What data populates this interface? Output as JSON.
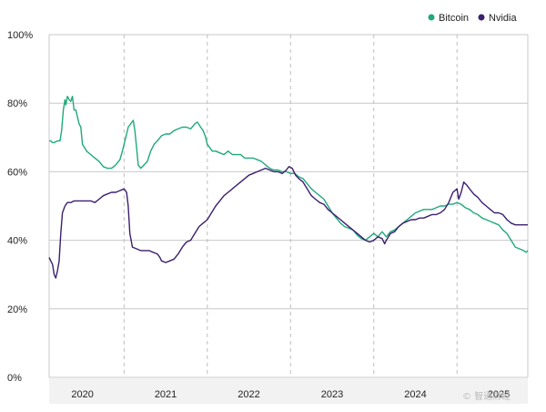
{
  "chart_data": {
    "type": "line",
    "title": "",
    "xlabel": "",
    "ylabel": "",
    "ylim": [
      0,
      100
    ],
    "xlim": [
      2019.6,
      2025.35
    ],
    "y_ticks": [
      {
        "value": 0,
        "label": "0%"
      },
      {
        "value": 20,
        "label": "20%"
      },
      {
        "value": 40,
        "label": "40%"
      },
      {
        "value": 60,
        "label": "60%"
      },
      {
        "value": 80,
        "label": "80%"
      },
      {
        "value": 100,
        "label": "100%"
      }
    ],
    "x_ticks": [
      {
        "value": 2020,
        "label": "2020"
      },
      {
        "value": 2021,
        "label": "2021"
      },
      {
        "value": 2022,
        "label": "2022"
      },
      {
        "value": 2023,
        "label": "2023"
      },
      {
        "value": 2024,
        "label": "2024"
      },
      {
        "value": 2025,
        "label": "2025"
      }
    ],
    "vertical_gridlines": [
      2020.5,
      2021.5,
      2022.5,
      2023.5,
      2024.5
    ],
    "grid": true,
    "legend_position": "top-right",
    "series": [
      {
        "name": "Bitcoin",
        "color": "#1fa97d",
        "points": [
          [
            2019.6,
            69
          ],
          [
            2019.62,
            69
          ],
          [
            2019.64,
            68.5
          ],
          [
            2019.66,
            68.5
          ],
          [
            2019.7,
            69
          ],
          [
            2019.73,
            69
          ],
          [
            2019.75,
            72
          ],
          [
            2019.77,
            78
          ],
          [
            2019.79,
            81
          ],
          [
            2019.8,
            79.5
          ],
          [
            2019.82,
            82
          ],
          [
            2019.84,
            81
          ],
          [
            2019.86,
            80.5
          ],
          [
            2019.88,
            82
          ],
          [
            2019.9,
            78
          ],
          [
            2019.92,
            78
          ],
          [
            2019.94,
            76
          ],
          [
            2019.96,
            74
          ],
          [
            2019.98,
            73
          ],
          [
            2020.0,
            68
          ],
          [
            2020.05,
            66
          ],
          [
            2020.1,
            65
          ],
          [
            2020.15,
            64
          ],
          [
            2020.2,
            63
          ],
          [
            2020.25,
            61.5
          ],
          [
            2020.3,
            61
          ],
          [
            2020.35,
            61
          ],
          [
            2020.4,
            62
          ],
          [
            2020.45,
            63.5
          ],
          [
            2020.48,
            66
          ],
          [
            2020.52,
            70
          ],
          [
            2020.55,
            73
          ],
          [
            2020.58,
            74
          ],
          [
            2020.61,
            75
          ],
          [
            2020.63,
            72
          ],
          [
            2020.65,
            67
          ],
          [
            2020.67,
            62
          ],
          [
            2020.7,
            61
          ],
          [
            2020.74,
            62
          ],
          [
            2020.78,
            63
          ],
          [
            2020.82,
            66
          ],
          [
            2020.86,
            68
          ],
          [
            2020.9,
            69
          ],
          [
            2020.95,
            70.5
          ],
          [
            2021.0,
            71
          ],
          [
            2021.05,
            71
          ],
          [
            2021.1,
            72
          ],
          [
            2021.15,
            72.5
          ],
          [
            2021.2,
            73
          ],
          [
            2021.25,
            73
          ],
          [
            2021.3,
            72.5
          ],
          [
            2021.35,
            74
          ],
          [
            2021.38,
            74.5
          ],
          [
            2021.42,
            73
          ],
          [
            2021.45,
            72
          ],
          [
            2021.48,
            70
          ],
          [
            2021.5,
            68
          ],
          [
            2021.53,
            67
          ],
          [
            2021.56,
            66
          ],
          [
            2021.6,
            66
          ],
          [
            2021.65,
            65.5
          ],
          [
            2021.7,
            65
          ],
          [
            2021.75,
            66
          ],
          [
            2021.8,
            65
          ],
          [
            2021.85,
            65
          ],
          [
            2021.9,
            65
          ],
          [
            2021.95,
            64
          ],
          [
            2022.0,
            64
          ],
          [
            2022.05,
            64
          ],
          [
            2022.1,
            63.5
          ],
          [
            2022.15,
            63
          ],
          [
            2022.2,
            62
          ],
          [
            2022.25,
            61
          ],
          [
            2022.3,
            60.5
          ],
          [
            2022.35,
            60.5
          ],
          [
            2022.4,
            60
          ],
          [
            2022.45,
            60
          ],
          [
            2022.5,
            59.5
          ],
          [
            2022.55,
            59.5
          ],
          [
            2022.6,
            58.5
          ],
          [
            2022.65,
            58
          ],
          [
            2022.7,
            56.5
          ],
          [
            2022.75,
            55
          ],
          [
            2022.8,
            54
          ],
          [
            2022.85,
            53
          ],
          [
            2022.9,
            52
          ],
          [
            2022.95,
            50
          ],
          [
            2023.0,
            48
          ],
          [
            2023.05,
            46.5
          ],
          [
            2023.1,
            45
          ],
          [
            2023.15,
            44
          ],
          [
            2023.2,
            43.5
          ],
          [
            2023.25,
            43
          ],
          [
            2023.3,
            41.5
          ],
          [
            2023.35,
            40.5
          ],
          [
            2023.4,
            40
          ],
          [
            2023.45,
            41
          ],
          [
            2023.5,
            42
          ],
          [
            2023.55,
            41
          ],
          [
            2023.6,
            42.5
          ],
          [
            2023.65,
            41
          ],
          [
            2023.7,
            42.5
          ],
          [
            2023.75,
            43
          ],
          [
            2023.8,
            44
          ],
          [
            2023.85,
            45
          ],
          [
            2023.9,
            46
          ],
          [
            2023.95,
            47
          ],
          [
            2024.0,
            48
          ],
          [
            2024.05,
            48.5
          ],
          [
            2024.1,
            49
          ],
          [
            2024.15,
            49
          ],
          [
            2024.2,
            49
          ],
          [
            2024.25,
            49.5
          ],
          [
            2024.3,
            50
          ],
          [
            2024.35,
            50
          ],
          [
            2024.4,
            50.5
          ],
          [
            2024.45,
            50.5
          ],
          [
            2024.5,
            51
          ],
          [
            2024.55,
            50.5
          ],
          [
            2024.6,
            49.5
          ],
          [
            2024.65,
            49
          ],
          [
            2024.7,
            48
          ],
          [
            2024.75,
            47.5
          ],
          [
            2024.8,
            46.5
          ],
          [
            2024.85,
            46
          ],
          [
            2024.9,
            45.5
          ],
          [
            2024.95,
            45
          ],
          [
            2025.0,
            44.5
          ],
          [
            2025.05,
            43
          ],
          [
            2025.1,
            42
          ],
          [
            2025.15,
            40
          ],
          [
            2025.2,
            38
          ],
          [
            2025.25,
            37.5
          ],
          [
            2025.3,
            37
          ],
          [
            2025.33,
            36.5
          ],
          [
            2025.35,
            37
          ]
        ]
      },
      {
        "name": "Nvidia",
        "color": "#3b1f6e",
        "points": [
          [
            2019.6,
            35
          ],
          [
            2019.62,
            34
          ],
          [
            2019.64,
            33
          ],
          [
            2019.66,
            30
          ],
          [
            2019.68,
            29
          ],
          [
            2019.7,
            31
          ],
          [
            2019.72,
            34
          ],
          [
            2019.74,
            42
          ],
          [
            2019.76,
            48
          ],
          [
            2019.79,
            50
          ],
          [
            2019.82,
            51
          ],
          [
            2019.86,
            51
          ],
          [
            2019.9,
            51.5
          ],
          [
            2019.95,
            51.5
          ],
          [
            2020.0,
            51.5
          ],
          [
            2020.05,
            51.5
          ],
          [
            2020.1,
            51.5
          ],
          [
            2020.15,
            51
          ],
          [
            2020.2,
            52
          ],
          [
            2020.25,
            53
          ],
          [
            2020.3,
            53.5
          ],
          [
            2020.35,
            54
          ],
          [
            2020.4,
            54
          ],
          [
            2020.45,
            54.5
          ],
          [
            2020.5,
            55
          ],
          [
            2020.53,
            54
          ],
          [
            2020.55,
            50
          ],
          [
            2020.57,
            42
          ],
          [
            2020.6,
            38
          ],
          [
            2020.65,
            37.5
          ],
          [
            2020.7,
            37
          ],
          [
            2020.75,
            37
          ],
          [
            2020.8,
            37
          ],
          [
            2020.85,
            36.5
          ],
          [
            2020.9,
            36
          ],
          [
            2020.93,
            35
          ],
          [
            2020.95,
            34
          ],
          [
            2021.0,
            33.5
          ],
          [
            2021.05,
            34
          ],
          [
            2021.1,
            34.5
          ],
          [
            2021.15,
            36
          ],
          [
            2021.2,
            38
          ],
          [
            2021.25,
            39.5
          ],
          [
            2021.3,
            40
          ],
          [
            2021.35,
            42
          ],
          [
            2021.4,
            44
          ],
          [
            2021.45,
            45
          ],
          [
            2021.5,
            46
          ],
          [
            2021.55,
            48
          ],
          [
            2021.6,
            50
          ],
          [
            2021.65,
            51.5
          ],
          [
            2021.7,
            53
          ],
          [
            2021.75,
            54
          ],
          [
            2021.8,
            55
          ],
          [
            2021.85,
            56
          ],
          [
            2021.9,
            57
          ],
          [
            2021.95,
            58
          ],
          [
            2022.0,
            59
          ],
          [
            2022.05,
            59.5
          ],
          [
            2022.1,
            60
          ],
          [
            2022.15,
            60.5
          ],
          [
            2022.2,
            61
          ],
          [
            2022.25,
            60.5
          ],
          [
            2022.3,
            60
          ],
          [
            2022.35,
            60
          ],
          [
            2022.4,
            59.5
          ],
          [
            2022.45,
            60.5
          ],
          [
            2022.48,
            61.5
          ],
          [
            2022.52,
            61
          ],
          [
            2022.56,
            59
          ],
          [
            2022.6,
            58
          ],
          [
            2022.65,
            57
          ],
          [
            2022.7,
            55
          ],
          [
            2022.75,
            53
          ],
          [
            2022.8,
            52
          ],
          [
            2022.85,
            51
          ],
          [
            2022.9,
            50.5
          ],
          [
            2022.95,
            49
          ],
          [
            2023.0,
            48
          ],
          [
            2023.05,
            47
          ],
          [
            2023.1,
            46
          ],
          [
            2023.15,
            45
          ],
          [
            2023.2,
            44
          ],
          [
            2023.25,
            43
          ],
          [
            2023.3,
            42
          ],
          [
            2023.35,
            41
          ],
          [
            2023.4,
            40
          ],
          [
            2023.45,
            39.5
          ],
          [
            2023.5,
            40
          ],
          [
            2023.55,
            41
          ],
          [
            2023.6,
            40.5
          ],
          [
            2023.63,
            39
          ],
          [
            2023.65,
            40
          ],
          [
            2023.7,
            42
          ],
          [
            2023.75,
            42.5
          ],
          [
            2023.8,
            44
          ],
          [
            2023.85,
            45
          ],
          [
            2023.9,
            45.5
          ],
          [
            2023.95,
            46
          ],
          [
            2024.0,
            46
          ],
          [
            2024.05,
            46.5
          ],
          [
            2024.1,
            46.5
          ],
          [
            2024.15,
            47
          ],
          [
            2024.2,
            47.5
          ],
          [
            2024.25,
            47.5
          ],
          [
            2024.3,
            48
          ],
          [
            2024.35,
            49
          ],
          [
            2024.4,
            51
          ],
          [
            2024.45,
            54
          ],
          [
            2024.5,
            55
          ],
          [
            2024.52,
            52
          ],
          [
            2024.55,
            54
          ],
          [
            2024.58,
            57
          ],
          [
            2024.62,
            56
          ],
          [
            2024.65,
            55
          ],
          [
            2024.7,
            53.5
          ],
          [
            2024.75,
            52.5
          ],
          [
            2024.8,
            51
          ],
          [
            2024.85,
            50
          ],
          [
            2024.9,
            49
          ],
          [
            2024.95,
            48
          ],
          [
            2025.0,
            48
          ],
          [
            2025.05,
            47.5
          ],
          [
            2025.1,
            46
          ],
          [
            2025.15,
            45
          ],
          [
            2025.2,
            44.5
          ],
          [
            2025.25,
            44.5
          ],
          [
            2025.3,
            44.5
          ],
          [
            2025.35,
            44.5
          ]
        ]
      }
    ],
    "watermark": "© 智通财经"
  }
}
